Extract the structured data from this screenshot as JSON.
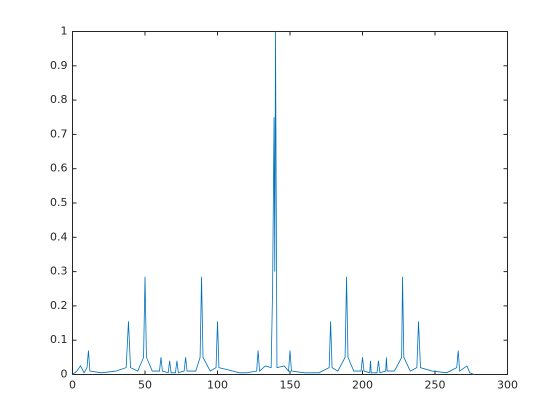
{
  "chart_data": {
    "type": "line",
    "x": [
      0,
      3,
      5.5,
      8,
      10,
      11,
      12,
      20,
      30,
      37,
      38.6,
      40,
      45,
      49,
      50,
      51,
      55,
      60,
      61,
      62,
      66,
      67,
      68,
      71,
      72,
      73,
      77,
      78,
      79,
      85,
      88,
      89,
      90,
      95,
      99,
      100,
      101,
      106,
      115,
      120,
      127,
      128,
      129,
      133,
      137,
      138,
      139,
      139.5,
      140,
      141,
      146,
      149,
      150,
      151,
      160,
      170,
      177,
      178,
      179,
      183,
      188,
      189,
      190,
      194,
      199,
      200,
      201,
      205,
      205.5,
      206,
      210,
      211,
      212,
      216,
      216.5,
      217,
      222,
      227,
      227.6,
      228.5,
      233,
      237.5,
      238.6,
      240,
      248,
      258,
      265,
      266,
      267,
      272,
      274,
      277
    ],
    "series": [
      {
        "color": "#0072bd",
        "values": [
          0,
          0.01,
          0.025,
          0.005,
          0.02,
          0.07,
          0.01,
          0.005,
          0.01,
          0.02,
          0.155,
          0.02,
          0.01,
          0.05,
          0.285,
          0.05,
          0.01,
          0.01,
          0.05,
          0.01,
          0.005,
          0.04,
          0.005,
          0.005,
          0.04,
          0.005,
          0.01,
          0.05,
          0.01,
          0.01,
          0.05,
          0.285,
          0.05,
          0.01,
          0.02,
          0.155,
          0.02,
          0.015,
          0.005,
          0.005,
          0.01,
          0.07,
          0.01,
          0.025,
          0.02,
          0.25,
          0.75,
          0.3,
          1,
          0.02,
          0.025,
          0.01,
          0.07,
          0.01,
          0.005,
          0.005,
          0.02,
          0.155,
          0.02,
          0.01,
          0.05,
          0.285,
          0.05,
          0.01,
          0.01,
          0.05,
          0.01,
          0.005,
          0.04,
          0.005,
          0.005,
          0.04,
          0.005,
          0.01,
          0.05,
          0.01,
          0.01,
          0.05,
          0.285,
          0.05,
          0.01,
          0.02,
          0.155,
          0.02,
          0.01,
          0.005,
          0.02,
          0.07,
          0.01,
          0.025,
          0.005,
          0
        ]
      }
    ],
    "xlim": [
      0,
      300
    ],
    "xticks": [
      0,
      50,
      100,
      150,
      200,
      250,
      300
    ],
    "ylim": [
      0,
      1
    ],
    "yticks": [
      0,
      0.1,
      0.2,
      0.3,
      0.4,
      0.5,
      0.6,
      0.7,
      0.8,
      0.9,
      1
    ],
    "grid": false
  }
}
